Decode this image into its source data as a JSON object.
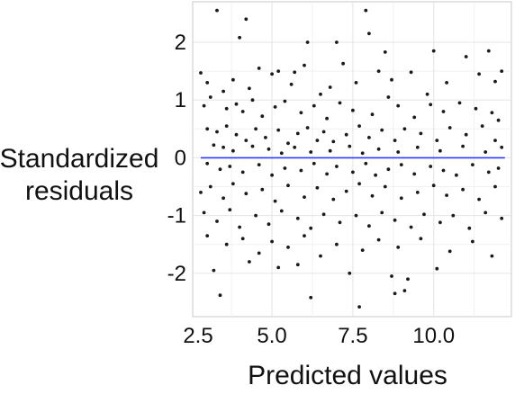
{
  "chart_data": {
    "type": "scatter",
    "title": "",
    "xlabel": "Predicted values",
    "ylabel_lines": [
      "Standardized",
      "residuals"
    ],
    "xlim": [
      2.55,
      12.4
    ],
    "ylim": [
      -2.75,
      2.7
    ],
    "xticks": [
      2.5,
      5.0,
      7.5,
      10.0
    ],
    "xtick_labels": [
      "2.5",
      "5.0",
      "7.5",
      "10.0"
    ],
    "yticks": [
      2,
      1,
      0,
      -1,
      -2
    ],
    "ytick_labels": [
      "2",
      "1",
      "0",
      "-1",
      "-2"
    ],
    "grid": true,
    "reference_line": {
      "y": 0,
      "x_from": 2.8,
      "x_to": 12.2,
      "color": "#2b3cff"
    },
    "point_color": "#1a1a1a",
    "points": [
      [
        3.3,
        2.55
      ],
      [
        4.2,
        2.4
      ],
      [
        7.9,
        2.55
      ],
      [
        4.0,
        2.08
      ],
      [
        6.1,
        2.0
      ],
      [
        7.0,
        2.0
      ],
      [
        8.0,
        2.15
      ],
      [
        11.7,
        1.85
      ],
      [
        5.2,
        1.5
      ],
      [
        5.7,
        1.48
      ],
      [
        8.5,
        1.83
      ],
      [
        10.0,
        1.85
      ],
      [
        11.0,
        1.75
      ],
      [
        12.1,
        1.5
      ],
      [
        2.8,
        1.47
      ],
      [
        3.0,
        1.3
      ],
      [
        3.5,
        1.15
      ],
      [
        3.8,
        1.35
      ],
      [
        4.3,
        1.2
      ],
      [
        4.6,
        1.55
      ],
      [
        5.0,
        1.45
      ],
      [
        5.6,
        1.27
      ],
      [
        6.0,
        1.6
      ],
      [
        6.5,
        1.1
      ],
      [
        6.8,
        1.22
      ],
      [
        7.2,
        1.63
      ],
      [
        7.6,
        1.3
      ],
      [
        8.3,
        1.5
      ],
      [
        8.7,
        1.35
      ],
      [
        9.3,
        1.48
      ],
      [
        9.8,
        1.1
      ],
      [
        10.4,
        1.3
      ],
      [
        11.4,
        1.45
      ],
      [
        11.9,
        1.32
      ],
      [
        2.9,
        0.9
      ],
      [
        3.1,
        1.05
      ],
      [
        3.6,
        0.85
      ],
      [
        3.9,
        0.93
      ],
      [
        4.1,
        0.8
      ],
      [
        4.4,
        1.0
      ],
      [
        4.7,
        0.72
      ],
      [
        5.1,
        0.88
      ],
      [
        5.4,
        0.98
      ],
      [
        5.9,
        0.78
      ],
      [
        6.3,
        0.9
      ],
      [
        6.7,
        0.68
      ],
      [
        7.1,
        0.95
      ],
      [
        7.5,
        0.82
      ],
      [
        8.1,
        0.75
      ],
      [
        8.6,
        1.05
      ],
      [
        8.9,
        0.9
      ],
      [
        9.4,
        0.7
      ],
      [
        9.9,
        0.92
      ],
      [
        10.3,
        0.8
      ],
      [
        10.8,
        0.95
      ],
      [
        11.3,
        0.85
      ],
      [
        11.8,
        0.78
      ],
      [
        12.0,
        0.65
      ],
      [
        3.0,
        0.5
      ],
      [
        3.3,
        0.45
      ],
      [
        3.6,
        0.55
      ],
      [
        3.9,
        0.4
      ],
      [
        4.2,
        0.3
      ],
      [
        4.5,
        0.5
      ],
      [
        4.8,
        0.35
      ],
      [
        5.2,
        0.48
      ],
      [
        5.5,
        0.25
      ],
      [
        5.8,
        0.42
      ],
      [
        6.1,
        0.52
      ],
      [
        6.4,
        0.3
      ],
      [
        6.6,
        0.45
      ],
      [
        6.9,
        0.28
      ],
      [
        7.3,
        0.4
      ],
      [
        7.7,
        0.55
      ],
      [
        8.0,
        0.35
      ],
      [
        8.4,
        0.48
      ],
      [
        8.8,
        0.3
      ],
      [
        9.1,
        0.5
      ],
      [
        9.6,
        0.42
      ],
      [
        10.1,
        0.3
      ],
      [
        10.5,
        0.52
      ],
      [
        11.0,
        0.4
      ],
      [
        11.5,
        0.55
      ],
      [
        11.9,
        0.3
      ],
      [
        3.2,
        0.22
      ],
      [
        3.5,
        0.18
      ],
      [
        3.8,
        0.12
      ],
      [
        4.4,
        0.2
      ],
      [
        4.9,
        0.15
      ],
      [
        5.3,
        0.08
      ],
      [
        5.7,
        0.18
      ],
      [
        6.2,
        0.1
      ],
      [
        6.8,
        0.12
      ],
      [
        7.4,
        0.2
      ],
      [
        7.8,
        0.08
      ],
      [
        8.3,
        0.15
      ],
      [
        8.9,
        0.1
      ],
      [
        9.5,
        0.18
      ],
      [
        10.2,
        0.12
      ],
      [
        10.9,
        0.2
      ],
      [
        11.6,
        0.1
      ],
      [
        12.1,
        0.18
      ],
      [
        3.0,
        -0.1
      ],
      [
        3.4,
        -0.2
      ],
      [
        3.7,
        -0.15
      ],
      [
        4.1,
        -0.25
      ],
      [
        4.6,
        -0.12
      ],
      [
        5.0,
        -0.3
      ],
      [
        5.4,
        -0.18
      ],
      [
        5.9,
        -0.22
      ],
      [
        6.3,
        -0.1
      ],
      [
        6.7,
        -0.28
      ],
      [
        7.0,
        -0.15
      ],
      [
        7.5,
        -0.25
      ],
      [
        7.9,
        -0.1
      ],
      [
        8.2,
        -0.3
      ],
      [
        8.6,
        -0.2
      ],
      [
        9.0,
        -0.12
      ],
      [
        9.4,
        -0.28
      ],
      [
        9.9,
        -0.15
      ],
      [
        10.3,
        -0.22
      ],
      [
        10.7,
        -0.3
      ],
      [
        11.2,
        -0.12
      ],
      [
        11.7,
        -0.25
      ],
      [
        12.0,
        -0.18
      ],
      [
        2.8,
        -0.6
      ],
      [
        3.1,
        -0.5
      ],
      [
        3.5,
        -0.7
      ],
      [
        3.8,
        -0.45
      ],
      [
        4.2,
        -0.62
      ],
      [
        4.7,
        -0.55
      ],
      [
        5.1,
        -0.75
      ],
      [
        5.5,
        -0.48
      ],
      [
        6.0,
        -0.68
      ],
      [
        6.4,
        -0.52
      ],
      [
        6.9,
        -0.72
      ],
      [
        7.3,
        -0.58
      ],
      [
        7.7,
        -0.45
      ],
      [
        8.1,
        -0.66
      ],
      [
        8.5,
        -0.5
      ],
      [
        9.0,
        -0.7
      ],
      [
        9.5,
        -0.6
      ],
      [
        10.0,
        -0.48
      ],
      [
        10.4,
        -0.65
      ],
      [
        10.9,
        -0.55
      ],
      [
        11.4,
        -0.72
      ],
      [
        11.9,
        -0.5
      ],
      [
        2.9,
        -0.95
      ],
      [
        3.3,
        -1.1
      ],
      [
        3.7,
        -0.9
      ],
      [
        4.0,
        -1.2
      ],
      [
        4.5,
        -1.0
      ],
      [
        4.9,
        -1.15
      ],
      [
        5.3,
        -0.92
      ],
      [
        5.8,
        -1.05
      ],
      [
        6.2,
        -1.22
      ],
      [
        6.6,
        -0.98
      ],
      [
        7.1,
        -1.12
      ],
      [
        7.6,
        -1.0
      ],
      [
        8.0,
        -1.18
      ],
      [
        8.4,
        -0.95
      ],
      [
        8.8,
        -1.08
      ],
      [
        9.3,
        -1.2
      ],
      [
        9.7,
        -0.98
      ],
      [
        10.2,
        -1.12
      ],
      [
        10.6,
        -1.0
      ],
      [
        11.1,
        -1.22
      ],
      [
        11.6,
        -0.95
      ],
      [
        12.1,
        -1.05
      ],
      [
        3.0,
        -1.35
      ],
      [
        3.6,
        -1.5
      ],
      [
        4.1,
        -1.4
      ],
      [
        4.6,
        -1.65
      ],
      [
        5.0,
        -1.45
      ],
      [
        5.5,
        -1.55
      ],
      [
        6.0,
        -1.35
      ],
      [
        6.5,
        -1.7
      ],
      [
        7.0,
        -1.5
      ],
      [
        7.8,
        -1.6
      ],
      [
        8.3,
        -1.42
      ],
      [
        8.9,
        -1.55
      ],
      [
        9.6,
        -1.4
      ],
      [
        10.5,
        -1.62
      ],
      [
        11.2,
        -1.45
      ],
      [
        11.8,
        -1.7
      ],
      [
        3.2,
        -1.95
      ],
      [
        4.3,
        -1.8
      ],
      [
        5.2,
        -1.9
      ],
      [
        5.8,
        -1.85
      ],
      [
        7.4,
        -2.0
      ],
      [
        8.7,
        -2.05
      ],
      [
        9.2,
        -2.1
      ],
      [
        10.1,
        -1.92
      ],
      [
        3.4,
        -2.38
      ],
      [
        6.2,
        -2.42
      ],
      [
        7.7,
        -2.58
      ],
      [
        8.8,
        -2.35
      ],
      [
        9.1,
        -2.3
      ]
    ]
  }
}
